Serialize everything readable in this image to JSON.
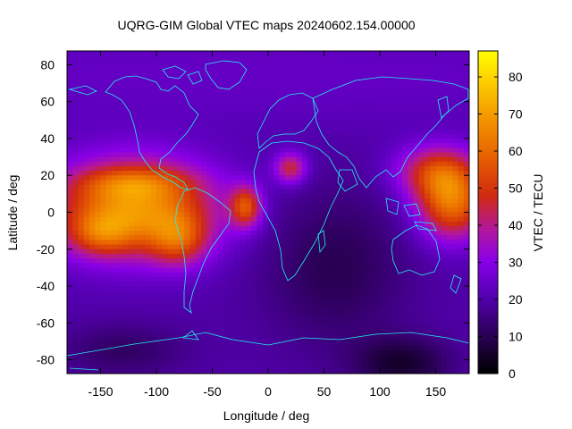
{
  "chart_data": {
    "type": "heatmap",
    "title": "UQRG-GIM Global VTEC maps 20240602.154.00000",
    "xlabel": "Longitude / deg",
    "ylabel": "Latitude / deg",
    "colorbar_label": "VTEC / TECU",
    "xlim": [
      -180,
      180
    ],
    "ylim": [
      -87.5,
      87.5
    ],
    "x_ticks": [
      -150,
      -100,
      -50,
      0,
      50,
      100,
      150
    ],
    "y_ticks": [
      -80,
      -60,
      -40,
      -20,
      0,
      20,
      40,
      60,
      80
    ],
    "colorbar_range": [
      0,
      87
    ],
    "colorbar_ticks": [
      0,
      10,
      20,
      30,
      40,
      50,
      60,
      70,
      80
    ],
    "colormap": "gnuplot black-purple-red-orange-yellow",
    "grid_resolution": {
      "dlon": 5,
      "dlat": 2.5
    },
    "features": [
      {
        "name": "equatorial crest (Pacific/Americas)",
        "lon_range": [
          -180,
          -60
        ],
        "lat_range": [
          -25,
          25
        ],
        "vtec_approx": 70
      },
      {
        "name": "peak near South America west coast",
        "lon": -80,
        "lat": -15,
        "vtec_approx": 80
      },
      {
        "name": "northern crest Pacific",
        "lon": -120,
        "lat": 15,
        "vtec_approx": 62
      },
      {
        "name": "equatorial arc Atlantic",
        "lon": -20,
        "lat": 3,
        "vtec_approx": 55
      },
      {
        "name": "North Africa spot",
        "lon": 20,
        "lat": 25,
        "vtec_approx": 52
      },
      {
        "name": "West Pacific crest",
        "lon": 160,
        "lat": 5,
        "vtec_approx": 58
      },
      {
        "name": "night-side minimum (Africa/Indian Ocean)",
        "lon_range": [
          0,
          100
        ],
        "lat_range": [
          -60,
          20
        ],
        "vtec_approx": 12
      },
      {
        "name": "Antarctic minimum",
        "lon_range": [
          80,
          150
        ],
        "lat_range": [
          -87.5,
          -70
        ],
        "vtec_approx": 2
      },
      {
        "name": "high-latitude north background",
        "lat_range": [
          50,
          87.5
        ],
        "vtec_approx": 22
      }
    ]
  }
}
